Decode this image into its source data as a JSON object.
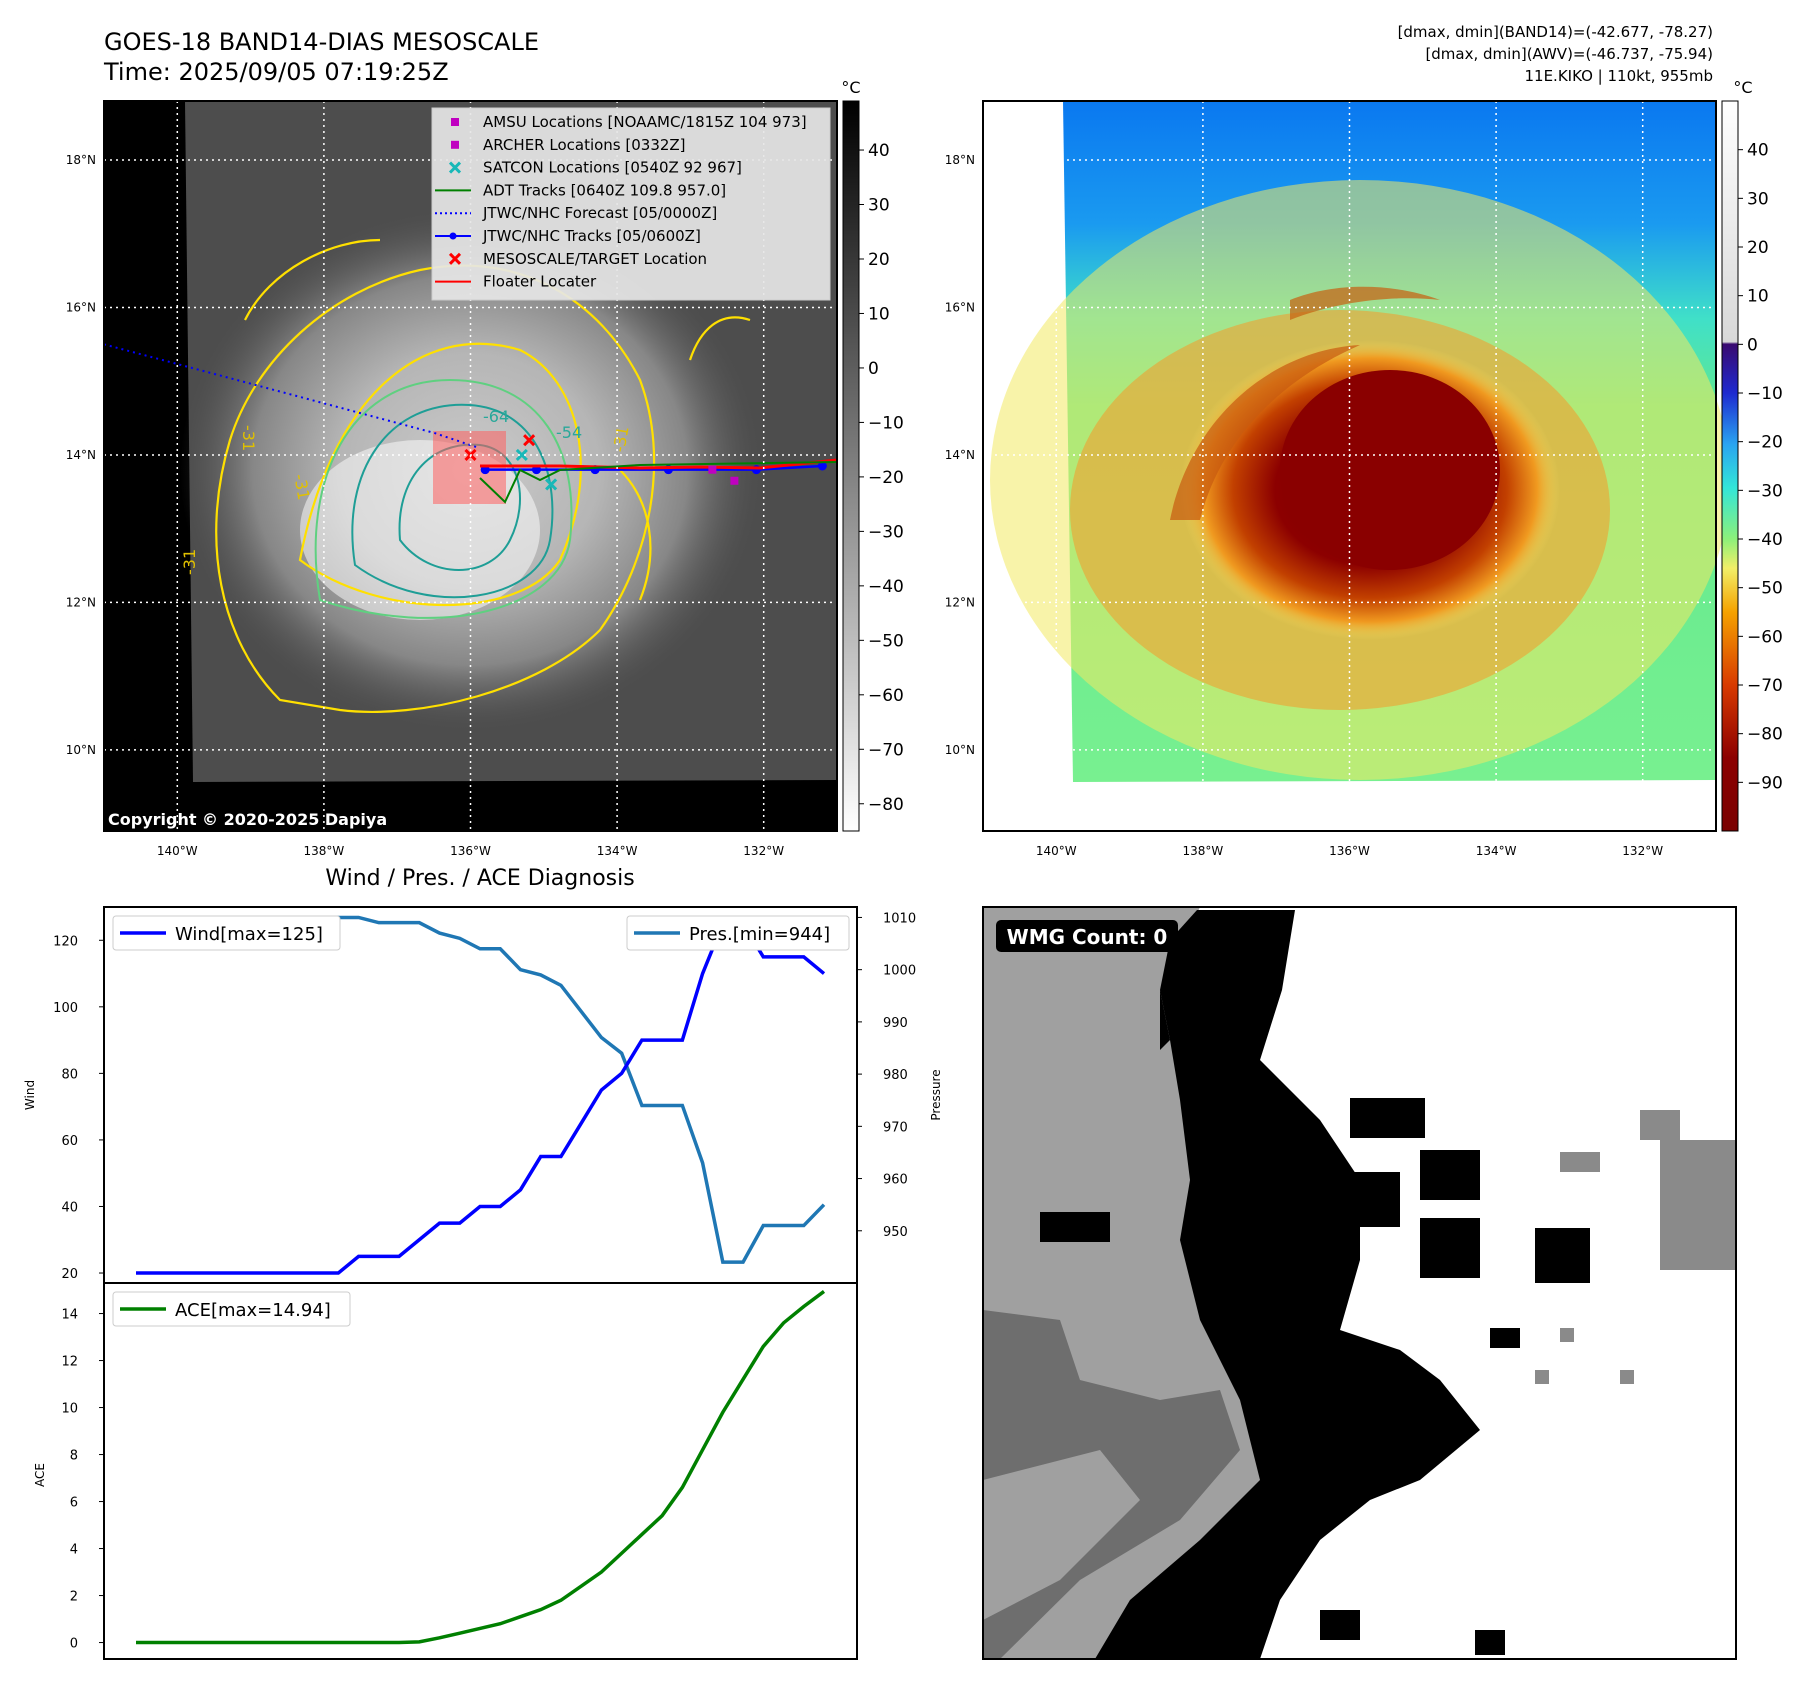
{
  "header": {
    "title_line1": "GOES-18 BAND14-DIAS MESOSCALE",
    "title_line2": "Time: 2025/09/05 07:19:25Z",
    "stats_line1": "[dmax, dmin](BAND14)=(-42.677, -78.27)",
    "stats_line2": "[dmax, dmin](AWV)=(-46.737, -75.94)",
    "stats_line3": "11E.KIKO | 110kt, 955mb"
  },
  "colors": {
    "wind": "#0000ff",
    "pressure": "#1f77b4",
    "ace": "#008000",
    "jtwc": "#0000ff",
    "adt": "#008000",
    "floater": "#ff0000"
  },
  "map_axes": {
    "lat_labels": [
      "18°N",
      "16°N",
      "14°N",
      "12°N",
      "10°N"
    ],
    "lon_labels": [
      "140°W",
      "138°W",
      "136°W",
      "134°W",
      "132°W"
    ],
    "lat_values": [
      18,
      16,
      14,
      12,
      10
    ],
    "lon_values": [
      -140,
      -138,
      -136,
      -134,
      -132
    ]
  },
  "left_map": {
    "copyright": "Copyright © 2020-2025 Dapiya",
    "contour_labels": [
      "-64",
      "-31",
      "-31",
      "-31",
      "-31",
      "-54"
    ],
    "colorbar": {
      "unit": "°C",
      "ticks": [
        "40",
        "30",
        "20",
        "10",
        "0",
        "−10",
        "−20",
        "−30",
        "−40",
        "−50",
        "−60",
        "−70",
        "−80"
      ],
      "tick_values": [
        40,
        30,
        20,
        10,
        0,
        -10,
        -20,
        -30,
        -40,
        -50,
        -60,
        -70,
        -80
      ],
      "range": [
        49,
        -85
      ]
    },
    "legend": [
      {
        "label": "AMSU Locations [NOAAMC/1815Z 104 973]",
        "marker": "square",
        "color": "#c000c0"
      },
      {
        "label": "ARCHER Locations [0332Z]",
        "marker": "square",
        "color": "#c000c0"
      },
      {
        "label": "SATCON Locations [0540Z 92 967]",
        "marker": "x",
        "color": "#18b8b8"
      },
      {
        "label": "ADT Tracks [0640Z 109.8 957.0]",
        "marker": "line",
        "color": "#008000"
      },
      {
        "label": "JTWC/NHC Forecast [05/0000Z]",
        "marker": "dotted",
        "color": "#0000ff"
      },
      {
        "label": "JTWC/NHC Tracks [05/0600Z]",
        "marker": "line-dot",
        "color": "#0000ff"
      },
      {
        "label": "MESOSCALE/TARGET Location",
        "marker": "x",
        "color": "#ff0000"
      },
      {
        "label": "Floater Locater",
        "marker": "line",
        "color": "#ff0000"
      }
    ],
    "jtwc_track": {
      "lon": [
        -135.8,
        -135.1,
        -134.3,
        -133.3,
        -132.1,
        -131.2
      ],
      "lat": [
        13.8,
        13.8,
        13.8,
        13.8,
        13.8,
        13.85
      ]
    },
    "jtwc_forecast": {
      "lon": [
        -141,
        -136.5,
        -135.9
      ],
      "lat": [
        15.5,
        14.3,
        14.1
      ]
    },
    "target_locations": [
      {
        "lon": -135.2,
        "lat": 14.2
      },
      {
        "lon": -136.0,
        "lat": 14.0
      }
    ],
    "satcon_locations": [
      {
        "lon": -134.9,
        "lat": 13.6
      },
      {
        "lon": -135.3,
        "lat": 14.0
      }
    ],
    "amsu_locations": [
      {
        "lon": -132.4,
        "lat": 13.65
      },
      {
        "lon": -132.7,
        "lat": 13.8
      }
    ]
  },
  "right_map": {
    "colorbar": {
      "unit": "°C",
      "ticks": [
        "40",
        "30",
        "20",
        "10",
        "0",
        "−10",
        "−20",
        "−30",
        "−40",
        "−50",
        "−60",
        "−70",
        "−80",
        "−90"
      ],
      "tick_values": [
        40,
        30,
        20,
        10,
        0,
        -10,
        -20,
        -30,
        -40,
        -50,
        -60,
        -70,
        -80,
        -90
      ],
      "range": [
        50,
        -100
      ]
    }
  },
  "chart_data": [
    {
      "type": "line",
      "title": "Wind / Pres. / ACE Diagnosis",
      "ylabel": "Wind",
      "y2label": "Pressure",
      "ylim": [
        17,
        130
      ],
      "y2lim": [
        940,
        1012
      ],
      "yticks": [
        20,
        40,
        60,
        80,
        100,
        120
      ],
      "y2ticks": [
        950,
        960,
        970,
        980,
        990,
        1000,
        1010
      ],
      "series": [
        {
          "name": "Wind[max=125]",
          "axis": "left",
          "values": [
            20,
            20,
            20,
            20,
            20,
            20,
            20,
            20,
            20,
            20,
            20,
            25,
            25,
            25,
            30,
            35,
            35,
            40,
            40,
            45,
            55,
            55,
            65,
            75,
            80,
            90,
            90,
            90,
            110,
            125,
            125,
            115,
            115,
            115,
            110
          ]
        },
        {
          "name": "Pres.[min=944]",
          "axis": "right",
          "values": [
            1010,
            1010,
            1010,
            1010,
            1010,
            1010,
            1010,
            1010,
            1010,
            1010,
            1010,
            1010,
            1009,
            1009,
            1009,
            1007,
            1006,
            1004,
            1004,
            1000,
            999,
            997,
            992,
            987,
            984,
            974,
            974,
            974,
            963,
            944,
            944,
            951,
            951,
            951,
            955
          ]
        }
      ]
    },
    {
      "type": "line",
      "ylabel": "ACE",
      "ylim": [
        -0.7,
        15.3
      ],
      "yticks": [
        0,
        2,
        4,
        6,
        8,
        10,
        12,
        14
      ],
      "series": [
        {
          "name": "ACE[max=14.94]",
          "values": [
            0,
            0,
            0,
            0,
            0,
            0,
            0,
            0,
            0,
            0,
            0,
            0,
            0,
            0,
            0.03,
            0.2,
            0.4,
            0.6,
            0.8,
            1.1,
            1.4,
            1.8,
            2.4,
            3.0,
            3.8,
            4.6,
            5.4,
            6.6,
            8.2,
            9.8,
            11.2,
            12.6,
            13.6,
            14.3,
            14.94
          ]
        }
      ]
    }
  ],
  "wmg": {
    "label": "WMG Count: 0"
  }
}
